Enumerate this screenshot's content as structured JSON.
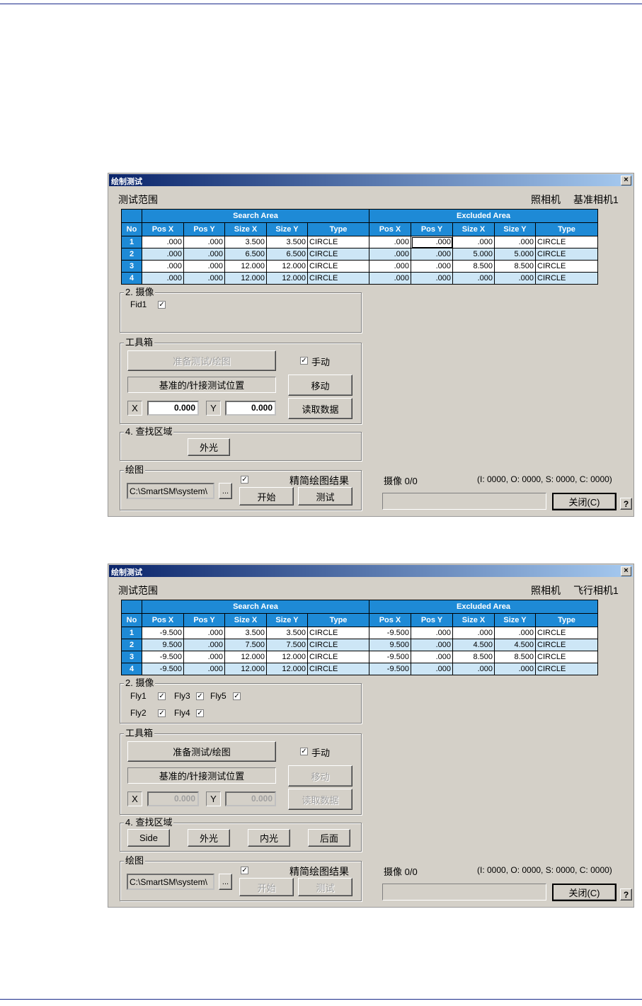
{
  "dialogs": [
    {
      "title": "绘制测试",
      "section_label": "测试范围",
      "camera_label": "照相机",
      "camera_value": "基准相机1",
      "table": {
        "search_area": "Search Area",
        "excluded_area": "Excluded Area",
        "columns": [
          "No",
          "Pos X",
          "Pos Y",
          "Size X",
          "Size Y",
          "Type",
          "Pos X",
          "Pos Y",
          "Size X",
          "Size Y",
          "Type"
        ],
        "rows": [
          [
            "1",
            ".000",
            ".000",
            "3.500",
            "3.500",
            "CIRCLE",
            ".000",
            ".000",
            ".000",
            ".000",
            "CIRCLE"
          ],
          [
            "2",
            ".000",
            ".000",
            "6.500",
            "6.500",
            "CIRCLE",
            ".000",
            ".000",
            "5.000",
            "5.000",
            "CIRCLE"
          ],
          [
            "3",
            ".000",
            ".000",
            "12.000",
            "12.000",
            "CIRCLE",
            ".000",
            ".000",
            "8.500",
            "8.500",
            "CIRCLE"
          ],
          [
            "4",
            ".000",
            ".000",
            "12.000",
            "12.000",
            "CIRCLE",
            ".000",
            ".000",
            ".000",
            ".000",
            "CIRCLE"
          ]
        ]
      },
      "camera_group": {
        "label": "2. 摄像",
        "rows": [
          [
            {
              "name": "Fid1",
              "checked": true
            }
          ]
        ]
      },
      "toolbox": {
        "label": "工具箱",
        "prepare_button": "准备测试/绘图",
        "prepare_enabled": false,
        "manual_label": "手动",
        "manual_checked": true,
        "ref_label": "基准的/针接测试位置",
        "move_button": "移动",
        "move_enabled": true,
        "x_label": "X",
        "x_value": "0.000",
        "y_label": "Y",
        "y_value": "0.000",
        "xy_enabled": true,
        "read_button": "读取数据",
        "read_enabled": true
      },
      "search_region": {
        "label": "4. 查找区域",
        "buttons": [
          "外光"
        ]
      },
      "plot": {
        "label": "绘图",
        "path": "C:\\SmartSM\\system\\",
        "browse": "...",
        "simplify_label": "精简绘图结果",
        "simplify_checked": true,
        "start": "开始",
        "test": "测试",
        "enabled": true
      },
      "status": {
        "camera": "摄像 0/0",
        "counts": "(I: 0000, O: 0000, S: 0000, C: 0000)",
        "progress": 0
      },
      "close_button": "关闭(C)",
      "help": "?"
    },
    {
      "title": "绘制测试",
      "section_label": "测试范围",
      "camera_label": "照相机",
      "camera_value": "飞行相机1",
      "table": {
        "search_area": "Search Area",
        "excluded_area": "Excluded Area",
        "columns": [
          "No",
          "Pos X",
          "Pos Y",
          "Size X",
          "Size Y",
          "Type",
          "Pos X",
          "Pos Y",
          "Size X",
          "Size Y",
          "Type"
        ],
        "rows": [
          [
            "1",
            "-9.500",
            ".000",
            "3.500",
            "3.500",
            "CIRCLE",
            "-9.500",
            ".000",
            ".000",
            ".000",
            "CIRCLE"
          ],
          [
            "2",
            "9.500",
            ".000",
            "7.500",
            "7.500",
            "CIRCLE",
            "9.500",
            ".000",
            "4.500",
            "4.500",
            "CIRCLE"
          ],
          [
            "3",
            "-9.500",
            ".000",
            "12.000",
            "12.000",
            "CIRCLE",
            "-9.500",
            ".000",
            "8.500",
            "8.500",
            "CIRCLE"
          ],
          [
            "4",
            "-9.500",
            ".000",
            "12.000",
            "12.000",
            "CIRCLE",
            "-9.500",
            ".000",
            ".000",
            ".000",
            "CIRCLE"
          ]
        ]
      },
      "camera_group": {
        "label": "2. 摄像",
        "rows": [
          [
            {
              "name": "Fly1",
              "checked": true
            },
            {
              "name": "Fly3",
              "checked": true
            },
            {
              "name": "Fly5",
              "checked": true
            }
          ],
          [
            {
              "name": "Fly2",
              "checked": true
            },
            {
              "name": "Fly4",
              "checked": true
            }
          ]
        ]
      },
      "toolbox": {
        "label": "工具箱",
        "prepare_button": "准备测试/绘图",
        "prepare_enabled": true,
        "manual_label": "手动",
        "manual_checked": true,
        "ref_label": "基准的/针接测试位置",
        "move_button": "移动",
        "move_enabled": false,
        "x_label": "X",
        "x_value": "0.000",
        "y_label": "Y",
        "y_value": "0.000",
        "xy_enabled": false,
        "read_button": "读取数据",
        "read_enabled": false
      },
      "search_region": {
        "label": "4. 查找区域",
        "buttons": [
          "Side",
          "外光",
          "内光",
          "后面"
        ]
      },
      "plot": {
        "label": "绘图",
        "path": "C:\\SmartSM\\system\\",
        "browse": "...",
        "simplify_label": "精简绘图结果",
        "simplify_checked": true,
        "start": "开始",
        "test": "测试",
        "enabled": false
      },
      "status": {
        "camera": "摄像 0/0",
        "counts": "(I: 0000, O: 0000, S: 0000, C: 0000)",
        "progress": 0
      },
      "close_button": "关闭(C)",
      "help": "?"
    }
  ]
}
